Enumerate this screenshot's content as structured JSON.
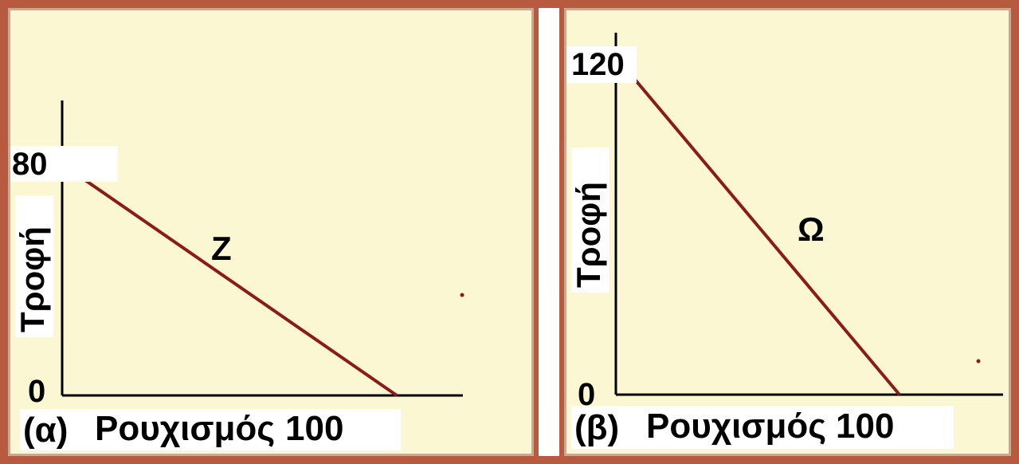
{
  "chart_data": [
    {
      "type": "line",
      "panel": "(α)",
      "xlabel": "Ρουχισμός",
      "ylabel": "Τροφή",
      "x_tick_labels": [
        "100"
      ],
      "y_tick_labels": [
        "0",
        "80"
      ],
      "y_zero_label": "0",
      "y_max_label": "80",
      "x_max_label": "100",
      "series": [
        {
          "name": "Z",
          "x": [
            0,
            100
          ],
          "y": [
            80,
            0
          ]
        }
      ],
      "xlim": [
        0,
        100
      ],
      "ylim": [
        0,
        80
      ],
      "grid": false,
      "colors": {
        "line": "#8b1a1a"
      }
    },
    {
      "type": "line",
      "panel": "(β)",
      "xlabel": "Ρουχισμός",
      "ylabel": "Τροφή",
      "x_tick_labels": [
        "100"
      ],
      "y_tick_labels": [
        "0",
        "120"
      ],
      "y_zero_label": "0",
      "y_max_label": "120",
      "x_max_label": "100",
      "series": [
        {
          "name": "Ω",
          "x": [
            0,
            100
          ],
          "y": [
            120,
            0
          ]
        }
      ],
      "xlim": [
        0,
        100
      ],
      "ylim": [
        0,
        120
      ],
      "grid": false,
      "colors": {
        "line": "#8b1a1a"
      }
    }
  ]
}
